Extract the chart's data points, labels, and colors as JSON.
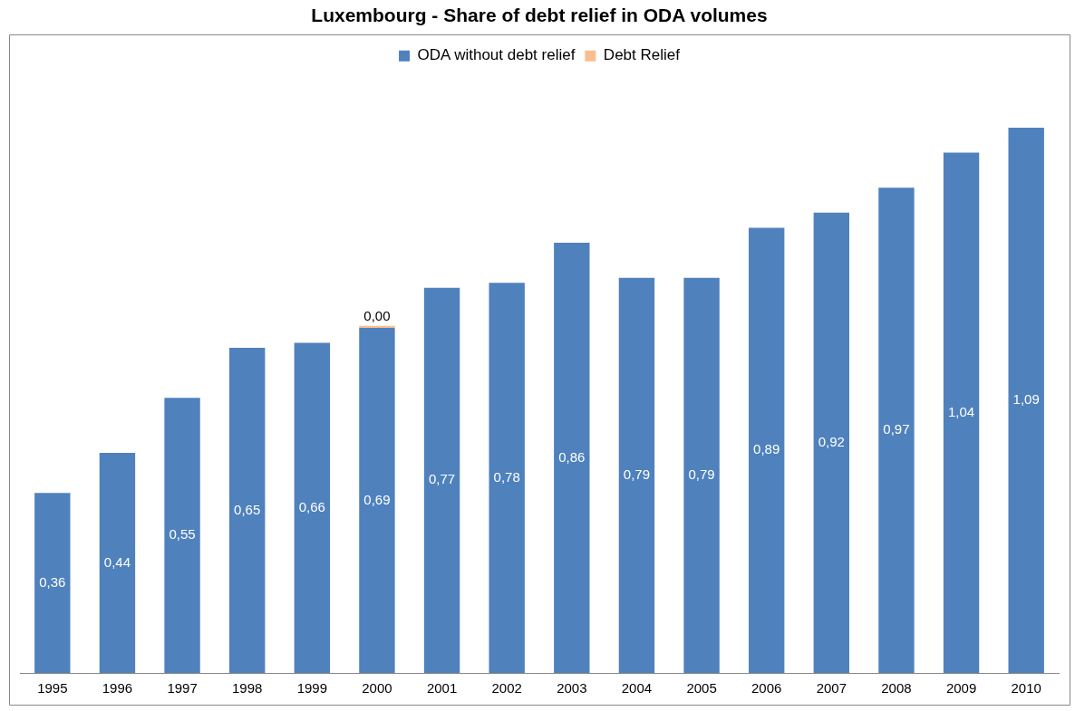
{
  "chart_data": {
    "type": "bar",
    "title": "Luxembourg - Share of debt relief in ODA volumes",
    "stacked": true,
    "legend": "top",
    "grid": false,
    "categories": [
      "1995",
      "1996",
      "1997",
      "1998",
      "1999",
      "2000",
      "2001",
      "2002",
      "2003",
      "2004",
      "2005",
      "2006",
      "2007",
      "2008",
      "2009",
      "2010"
    ],
    "series": [
      {
        "name": "ODA without debt relief",
        "color": "#4f81bd",
        "values": [
          0.36,
          0.44,
          0.55,
          0.65,
          0.66,
          0.69,
          0.77,
          0.78,
          0.86,
          0.79,
          0.79,
          0.89,
          0.92,
          0.97,
          1.04,
          1.09
        ],
        "value_labels": [
          "0,36",
          "0,44",
          "0,55",
          "0,65",
          "0,66",
          "0,69",
          "0,77",
          "0,78",
          "0,86",
          "0,79",
          "0,79",
          "0,89",
          "0,92",
          "0,97",
          "1,04",
          "1,09"
        ]
      },
      {
        "name": "Debt Relief",
        "color": "#f9be8f",
        "values": [
          0,
          0,
          0,
          0,
          0,
          0.004,
          0,
          0,
          0,
          0,
          0,
          0,
          0,
          0,
          0,
          0
        ],
        "value_labels": [
          null,
          null,
          null,
          null,
          null,
          "0,00",
          null,
          null,
          null,
          null,
          null,
          null,
          null,
          null,
          null,
          null
        ]
      }
    ]
  }
}
